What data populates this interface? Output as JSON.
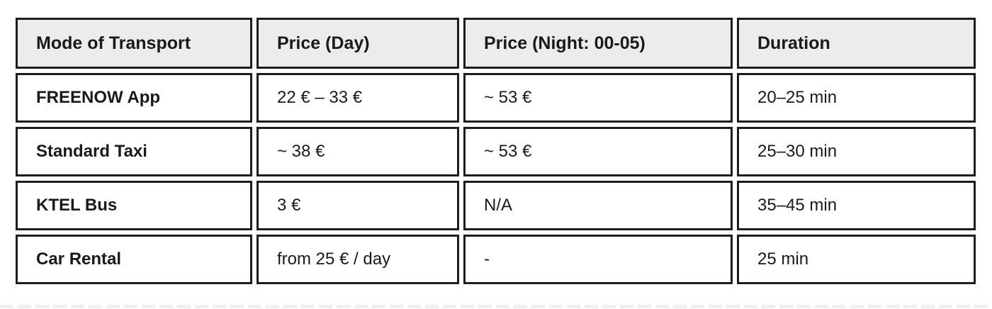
{
  "table": {
    "headers": {
      "mode": "Mode of Transport",
      "price_day": "Price (Day)",
      "price_night": "Price (Night: 00-05)",
      "duration": "Duration"
    },
    "rows": [
      {
        "mode": "FREENOW App",
        "price_day": "22 € – 33 €",
        "price_night": "~ 53 €",
        "duration": "20–25 min"
      },
      {
        "mode": "Standard Taxi",
        "price_day": "~ 38 €",
        "price_night": "~ 53 €",
        "duration": "25–30 min"
      },
      {
        "mode": "KTEL Bus",
        "price_day": "3 €",
        "price_night": "N/A",
        "duration": "35–45 min"
      },
      {
        "mode": "Car Rental",
        "price_day": "from 25 € / day",
        "price_night": "-",
        "duration": "25 min"
      }
    ]
  },
  "colors": {
    "page_bg": "#ffffff",
    "header_bg": "#ececec",
    "cell_border": "#1d1d1d",
    "text": "#1a1a1a",
    "bottom_dash": "#efefef"
  }
}
